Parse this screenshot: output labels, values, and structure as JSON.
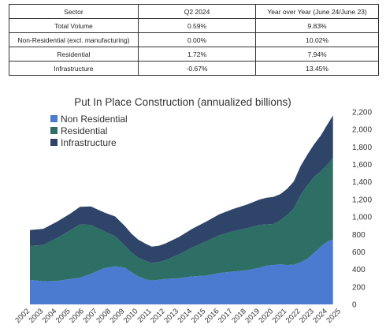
{
  "table": {
    "headers": [
      "Sector",
      "Q2 2024",
      "Year over Year (June 24/June 23)"
    ],
    "rows": [
      [
        "Total Volume",
        "0.59%",
        "9.83%"
      ],
      [
        "Non-Residential (excl. manufacturing)",
        "0.00%",
        "10.02%"
      ],
      [
        "Residential",
        "1.72%",
        "7.94%"
      ],
      [
        "Infrastructure",
        "-0.67%",
        "13.45%"
      ]
    ]
  },
  "chart_data": {
    "type": "area",
    "stacked": true,
    "title": "Put In Place Construction (annualized billions)",
    "ylim": [
      0,
      2200
    ],
    "yticks": [
      0,
      200,
      400,
      600,
      800,
      1000,
      1200,
      1400,
      1600,
      1800,
      2000,
      2200
    ],
    "ytick_labels": [
      "0",
      "200",
      "400",
      "600",
      "800",
      "1,000",
      "1,200",
      "1,400",
      "1,600",
      "1,800",
      "2,000",
      "2,200"
    ],
    "xlim": [
      2002,
      2025
    ],
    "xtick_labels": [
      "2002",
      "2003",
      "2004",
      "2005",
      "2006",
      "2007",
      "2008",
      "2009",
      "2010",
      "2011",
      "2012",
      "2013",
      "2014",
      "2015",
      "2016",
      "2017",
      "2018",
      "2019",
      "2020",
      "2021",
      "2022",
      "2023",
      "2024",
      "2025"
    ],
    "legend_position": "top-left",
    "x": [
      2002.0,
      2003.0,
      2004.0,
      2005.0,
      2005.7,
      2006.5,
      2007.5,
      2008.3,
      2009.0,
      2009.5,
      2010.0,
      2010.6,
      2011.0,
      2011.5,
      2012.0,
      2013.0,
      2014.0,
      2015.0,
      2016.0,
      2017.0,
      2018.0,
      2019.0,
      2019.5,
      2020.0,
      2020.5,
      2021.0,
      2021.5,
      2022.0,
      2022.5,
      2023.0,
      2023.5,
      2024.0,
      2024.4
    ],
    "series": [
      {
        "name": "Non Residential",
        "color": "#4a7bd0",
        "values": [
          280,
          265,
          268,
          290,
          305,
          350,
          415,
          435,
          420,
          370,
          320,
          285,
          275,
          280,
          290,
          300,
          320,
          330,
          360,
          375,
          390,
          420,
          445,
          450,
          460,
          450,
          455,
          480,
          520,
          590,
          660,
          720,
          740
        ]
      },
      {
        "name": "Residential",
        "color": "#2d6e65",
        "values": [
          390,
          415,
          490,
          560,
          610,
          560,
          420,
          345,
          255,
          225,
          215,
          210,
          200,
          205,
          215,
          270,
          330,
          390,
          430,
          460,
          480,
          490,
          470,
          470,
          500,
          570,
          640,
          770,
          840,
          870,
          860,
          880,
          940
        ]
      },
      {
        "name": "Infrastructure",
        "color": "#2e4569",
        "values": [
          180,
          185,
          188,
          190,
          200,
          210,
          215,
          225,
          225,
          215,
          205,
          195,
          185,
          185,
          190,
          200,
          215,
          225,
          240,
          255,
          270,
          290,
          305,
          310,
          300,
          300,
          310,
          330,
          350,
          370,
          410,
          460,
          480
        ]
      }
    ]
  }
}
